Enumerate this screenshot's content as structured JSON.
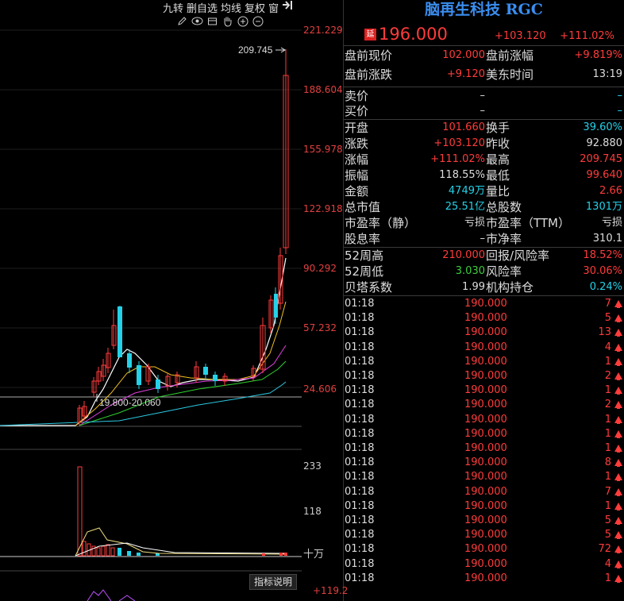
{
  "toolbar": {
    "menu": [
      "九转",
      "删自选",
      "均线",
      "复权",
      "窗"
    ],
    "icons": [
      "pencil-icon",
      "eye-icon",
      "calendar-icon",
      "hand-icon",
      "zoom-in-icon",
      "zoom-out-icon"
    ]
  },
  "axis": {
    "price_ticks": [
      "221.229",
      "188.604",
      "155.978",
      "122.918",
      "90.292",
      "57.232",
      "24.606"
    ],
    "volume_ticks": [
      "233",
      "118",
      "十万"
    ],
    "indicator_tick": "+119.2"
  },
  "chart_annotations": {
    "high_label": "209.745",
    "low_range_label": "19.800-20.060"
  },
  "indicator_button": "指标说明",
  "stock": {
    "name": "脑再生科技 RGC",
    "badge": "延",
    "price": "196.000",
    "change": "+103.120",
    "change_pct": "+111.02%"
  },
  "premarket": [
    {
      "l1": "盘前现价",
      "v1": "102.000",
      "v1c": "red",
      "l2": "盘前涨幅",
      "v2": "+9.819%",
      "v2c": "red"
    },
    {
      "l1": "盘前涨跌",
      "v1": "+9.120",
      "v1c": "red",
      "l2": "美东时间",
      "v2": "13:19",
      "v2c": "white"
    }
  ],
  "bidask": [
    {
      "l1": "卖价",
      "v1": "–",
      "v1c": "white",
      "v2": "–",
      "v2c": "cyan"
    },
    {
      "l1": "买价",
      "v1": "–",
      "v1c": "white",
      "v2": "–",
      "v2c": "cyan"
    }
  ],
  "stats": [
    {
      "l1": "开盘",
      "v1": "101.660",
      "v1c": "red",
      "l2": "换手",
      "v2": "39.60%",
      "v2c": "cyan"
    },
    {
      "l1": "涨跌",
      "v1": "+103.120",
      "v1c": "red",
      "l2": "昨收",
      "v2": "92.880",
      "v2c": "white"
    },
    {
      "l1": "涨幅",
      "v1": "+111.02%",
      "v1c": "red",
      "l2": "最高",
      "v2": "209.745",
      "v2c": "red"
    },
    {
      "l1": "振幅",
      "v1": "118.55%",
      "v1c": "white",
      "l2": "最低",
      "v2": "99.640",
      "v2c": "red"
    },
    {
      "l1": "金额",
      "v1": "4749万",
      "v1c": "cyan",
      "l2": "量比",
      "v2": "2.66",
      "v2c": "red"
    },
    {
      "l1": "总市值",
      "v1": "25.51亿",
      "v1c": "cyan",
      "l2": "总股数",
      "v2": "1301万",
      "v2c": "cyan"
    },
    {
      "l1": "市盈率（静）",
      "v1": "亏损",
      "v1c": "white",
      "l2": "市盈率（TTM）",
      "v2": "亏损",
      "v2c": "white"
    },
    {
      "l1": "股息率",
      "v1": "–",
      "v1c": "white",
      "l2": "市净率",
      "v2": "310.1",
      "v2c": "white"
    }
  ],
  "yearly": [
    {
      "l1": "52周高",
      "v1": "210.000",
      "v1c": "red",
      "l2": "回报/风险率",
      "v2": "18.52%",
      "v2c": "red"
    },
    {
      "l1": "52周低",
      "v1": "3.030",
      "v1c": "green",
      "l2": "风险率",
      "v2": "30.06%",
      "v2c": "red"
    },
    {
      "l1": "贝塔系数",
      "v1": "1.99",
      "v1c": "white",
      "l2": "机构持仓",
      "v2": "0.24%",
      "v2c": "cyan"
    }
  ],
  "ticks": [
    {
      "time": "01:18",
      "price": "190.000",
      "qty": "7"
    },
    {
      "time": "01:18",
      "price": "190.000",
      "qty": "5"
    },
    {
      "time": "01:18",
      "price": "190.000",
      "qty": "13"
    },
    {
      "time": "01:18",
      "price": "190.000",
      "qty": "4"
    },
    {
      "time": "01:18",
      "price": "190.000",
      "qty": "1"
    },
    {
      "time": "01:18",
      "price": "190.000",
      "qty": "2"
    },
    {
      "time": "01:18",
      "price": "190.000",
      "qty": "1"
    },
    {
      "time": "01:18",
      "price": "190.000",
      "qty": "2"
    },
    {
      "time": "01:18",
      "price": "190.000",
      "qty": "1"
    },
    {
      "time": "01:18",
      "price": "190.000",
      "qty": "1"
    },
    {
      "time": "01:18",
      "price": "190.000",
      "qty": "1"
    },
    {
      "time": "01:18",
      "price": "190.000",
      "qty": "8"
    },
    {
      "time": "01:18",
      "price": "190.000",
      "qty": "1"
    },
    {
      "time": "01:18",
      "price": "190.000",
      "qty": "7"
    },
    {
      "time": "01:18",
      "price": "190.000",
      "qty": "1"
    },
    {
      "time": "01:18",
      "price": "190.000",
      "qty": "5"
    },
    {
      "time": "01:18",
      "price": "190.000",
      "qty": "5"
    },
    {
      "time": "01:18",
      "price": "190.000",
      "qty": "72"
    },
    {
      "time": "01:18",
      "price": "190.000",
      "qty": "4"
    },
    {
      "time": "01:18",
      "price": "190.000",
      "qty": "1"
    }
  ],
  "colors": {
    "up": "#ff3b3b",
    "down": "#25d1e8",
    "accent": "#3a8ef0"
  }
}
